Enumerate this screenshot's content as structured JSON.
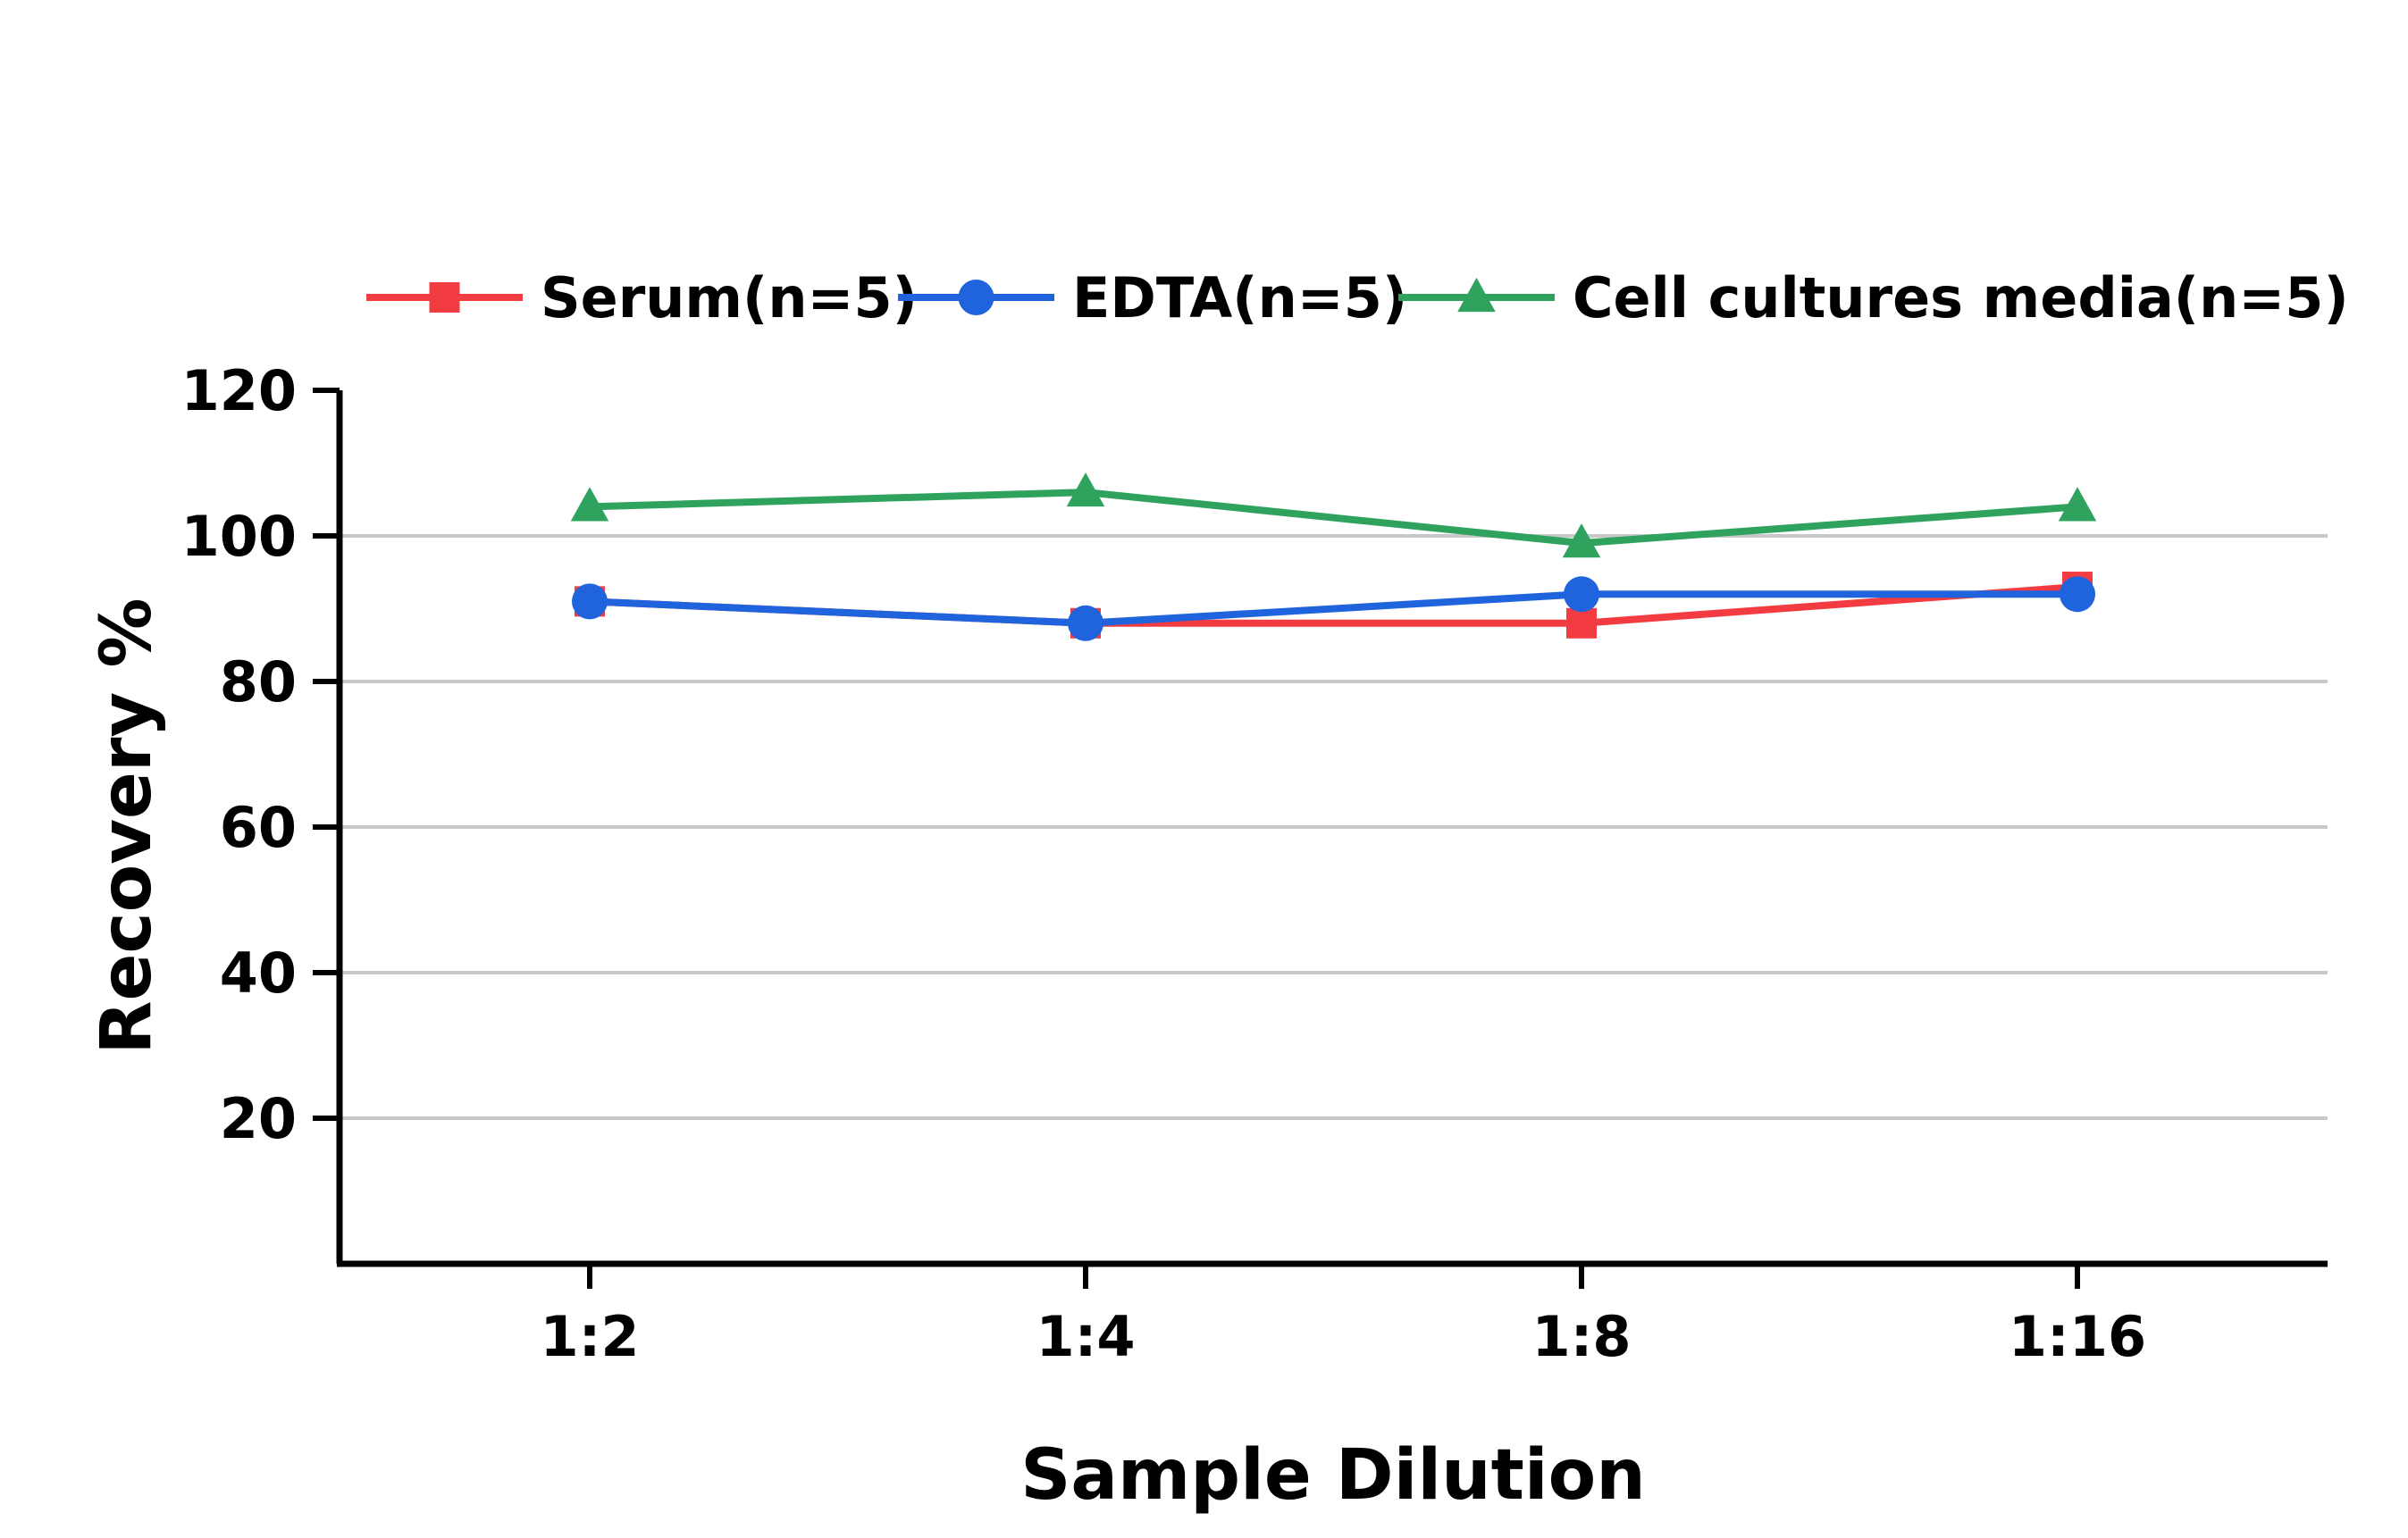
{
  "chart_data": {
    "type": "line",
    "categories": [
      "1:2",
      "1:4",
      "1:8",
      "1:16"
    ],
    "series": [
      {
        "name": "Serum(n=5)",
        "color": "#f23c41",
        "marker": "square",
        "values": [
          91,
          88,
          88,
          93
        ]
      },
      {
        "name": "EDTA(n=5)",
        "color": "#1f64dc",
        "marker": "circle",
        "values": [
          91,
          88,
          92,
          92
        ]
      },
      {
        "name": "Cell cultures media(n=5)",
        "color": "#2fa35e",
        "marker": "triangle",
        "values": [
          104,
          106,
          99,
          104
        ]
      }
    ],
    "xlabel": "Sample Dilution",
    "ylabel": "Recovery %",
    "ylim": [
      0,
      120
    ],
    "yticks": [
      20,
      40,
      60,
      80,
      100,
      120
    ],
    "gridlines": [
      20,
      40,
      60,
      80,
      100
    ],
    "grid_color": "#c8c8c8",
    "legend_position": "top"
  }
}
